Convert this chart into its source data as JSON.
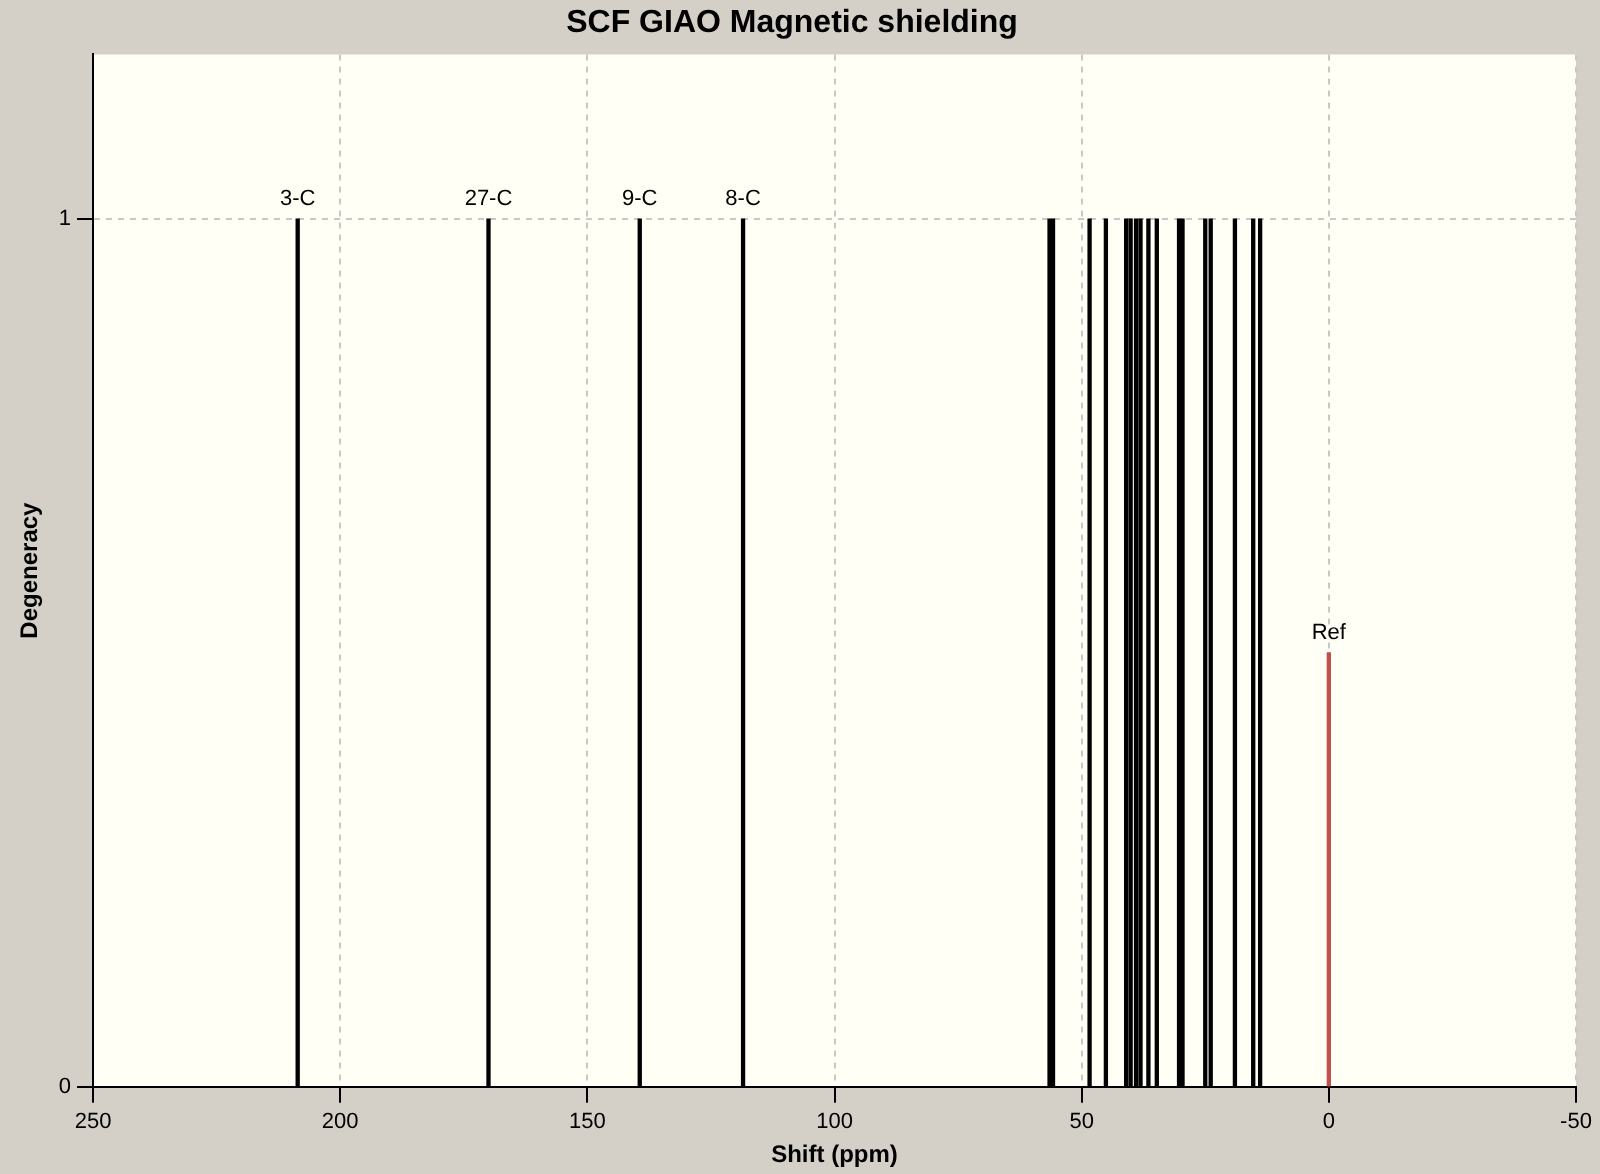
{
  "chart_data": {
    "type": "bar",
    "title": "SCF GIAO Magnetic shielding",
    "xlabel": "Shift (ppm)",
    "ylabel": "Degeneracy",
    "xlim": [
      250,
      -50
    ],
    "xticks": [
      250,
      200,
      150,
      100,
      50,
      0,
      -50
    ],
    "ylim": [
      0,
      1.19
    ],
    "yticks": [
      0,
      1
    ],
    "grid": true,
    "legend": false,
    "series": [
      {
        "name": "3-C",
        "color": "#000000",
        "x": [
          208.6
        ],
        "values": [
          1
        ]
      },
      {
        "name": "27-C",
        "color": "#000000",
        "x": [
          170
        ],
        "values": [
          1
        ]
      },
      {
        "name": "9-C",
        "color": "#000000",
        "x": [
          139.4
        ],
        "values": [
          1
        ]
      },
      {
        "name": "8-C",
        "color": "#000000",
        "x": [
          118.5
        ],
        "values": [
          1
        ]
      },
      {
        "color": "#000000",
        "x": [
          56.5,
          55.8,
          48.4,
          45.1,
          41,
          40.1,
          39,
          38.1,
          37,
          36.5,
          34.8,
          30.3,
          29.6,
          25,
          23.9,
          19,
          15.3,
          13.9
        ],
        "values": [
          1,
          1,
          1,
          1,
          1,
          1,
          1,
          1,
          null,
          1,
          1,
          1,
          1,
          1,
          1,
          1,
          1,
          1
        ]
      },
      {
        "name": "Ref",
        "color": "#c0504d",
        "x": [
          0
        ],
        "values": [
          0.5
        ]
      }
    ]
  }
}
